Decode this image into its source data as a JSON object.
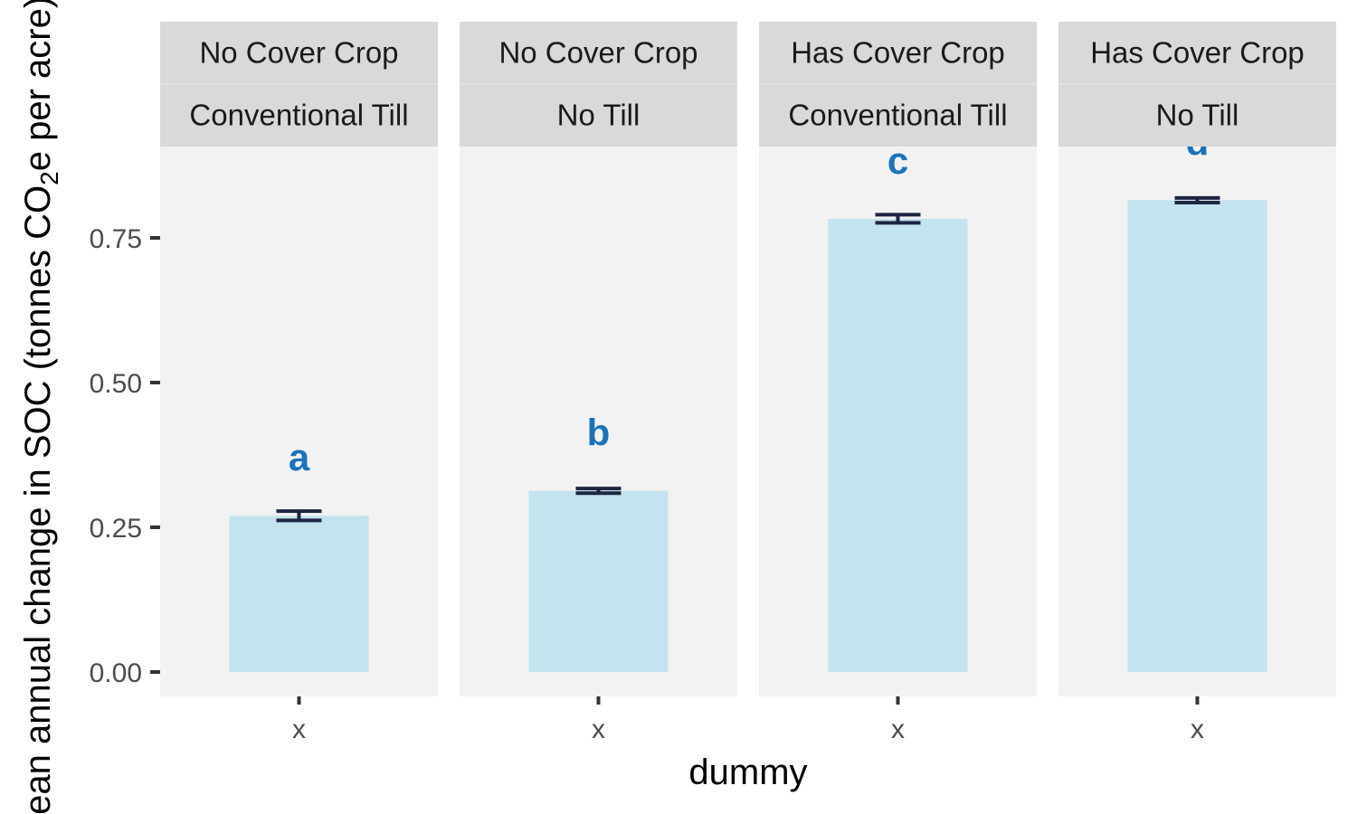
{
  "chart_data": {
    "type": "bar",
    "xlabel": "dummy",
    "ylabel_main": "Mean annual change in SOC (tonnes CO",
    "ylabel_sub": "2",
    "ylabel_tail": "e per acre)",
    "ylim": [
      -0.04,
      0.955
    ],
    "yticks": [
      0.0,
      0.25,
      0.5,
      0.75
    ],
    "ytick_labels": [
      "0.00",
      "0.25",
      "0.50",
      "0.75"
    ],
    "grid": false,
    "panels": [
      {
        "facet_top": "No Cover Crop",
        "facet_bottom": "Conventional Till",
        "category": "x",
        "value": 0.27,
        "error": 0.008,
        "letter": "a"
      },
      {
        "facet_top": "No Cover Crop",
        "facet_bottom": "No Till",
        "category": "x",
        "value": 0.313,
        "error": 0.004,
        "letter": "b"
      },
      {
        "facet_top": "Has Cover Crop",
        "facet_bottom": "Conventional Till",
        "category": "x",
        "value": 0.783,
        "error": 0.007,
        "letter": "c"
      },
      {
        "facet_top": "Has Cover Crop",
        "facet_bottom": "No Till",
        "category": "x",
        "value": 0.815,
        "error": 0.004,
        "letter": "d"
      }
    ],
    "colors": {
      "bar": "#c3e3ee",
      "panel_bg": "#f2f2f2",
      "strip_bg": "#d9d9d9",
      "errorbar": "#1c2541",
      "letter": "#1a73b8",
      "tick": "#333333"
    }
  }
}
